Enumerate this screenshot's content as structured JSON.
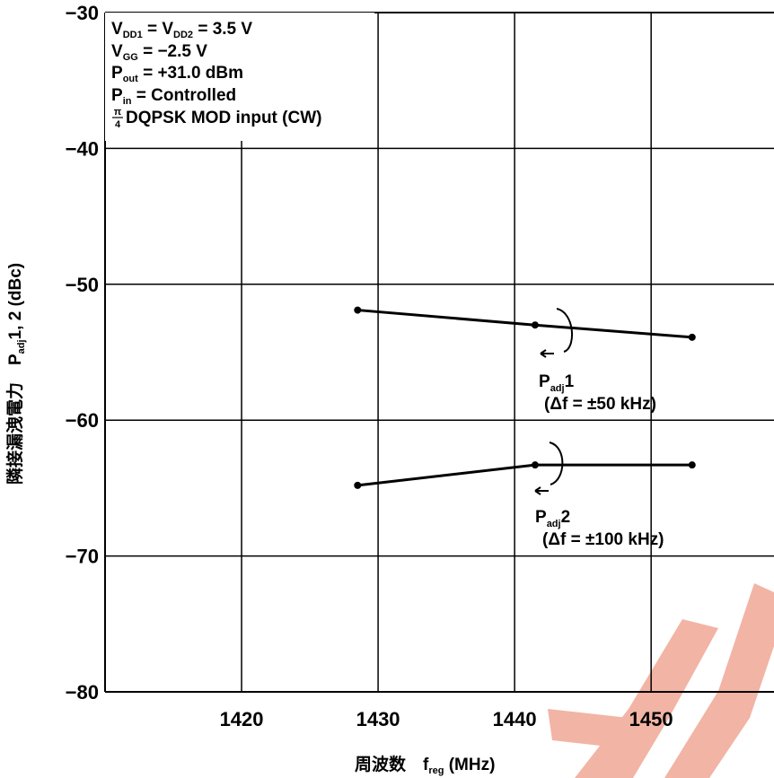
{
  "chart_data": {
    "type": "line",
    "xlabel": "周波数　f",
    "xlabel_sub": "reg",
    "xlabel_unit": "(MHz)",
    "ylabel_prefix": "隣接漏洩電力　P",
    "ylabel_sub": "adj",
    "ylabel_suffix": "1, 2 (dBc)",
    "xlim": [
      1410,
      1459
    ],
    "ylim": [
      -80,
      -30
    ],
    "x_ticks": [
      1420,
      1430,
      1440,
      1450
    ],
    "y_ticks": [
      -30,
      -40,
      -50,
      -60,
      -70,
      -80
    ],
    "y_tick_labels": [
      "−30",
      "−40",
      "−50",
      "−60",
      "−70",
      "−80"
    ],
    "grid": true,
    "conditions": [
      {
        "main": "V",
        "sub": "DD1",
        "rest": " = V",
        "sub2": "DD2",
        "rest2": " = 3.5 V"
      },
      {
        "main": "V",
        "sub": "GG",
        "rest": " = −2.5 V"
      },
      {
        "main": "P",
        "sub": "out",
        "rest": " = +31.0 dBm"
      },
      {
        "main": "P",
        "sub": "in",
        "rest": " = Controlled"
      },
      {
        "frac_num": "π",
        "frac_den": "4",
        "rest": "DQPSK MOD input (CW)"
      }
    ],
    "series": [
      {
        "name": "Padj1",
        "label_main": "P",
        "label_sub": "adj",
        "label_tail": "1",
        "label_detail": "(Δf = ±50 kHz)",
        "x": [
          1428.5,
          1441.5,
          1453
        ],
        "y": [
          -51.9,
          -53.0,
          -53.9
        ]
      },
      {
        "name": "Padj2",
        "label_main": "P",
        "label_sub": "adj",
        "label_tail": "2",
        "label_detail": "(Δf = ±100 kHz)",
        "x": [
          1428.5,
          1441.5,
          1453
        ],
        "y": [
          -64.8,
          -63.3,
          -63.3
        ]
      }
    ]
  }
}
